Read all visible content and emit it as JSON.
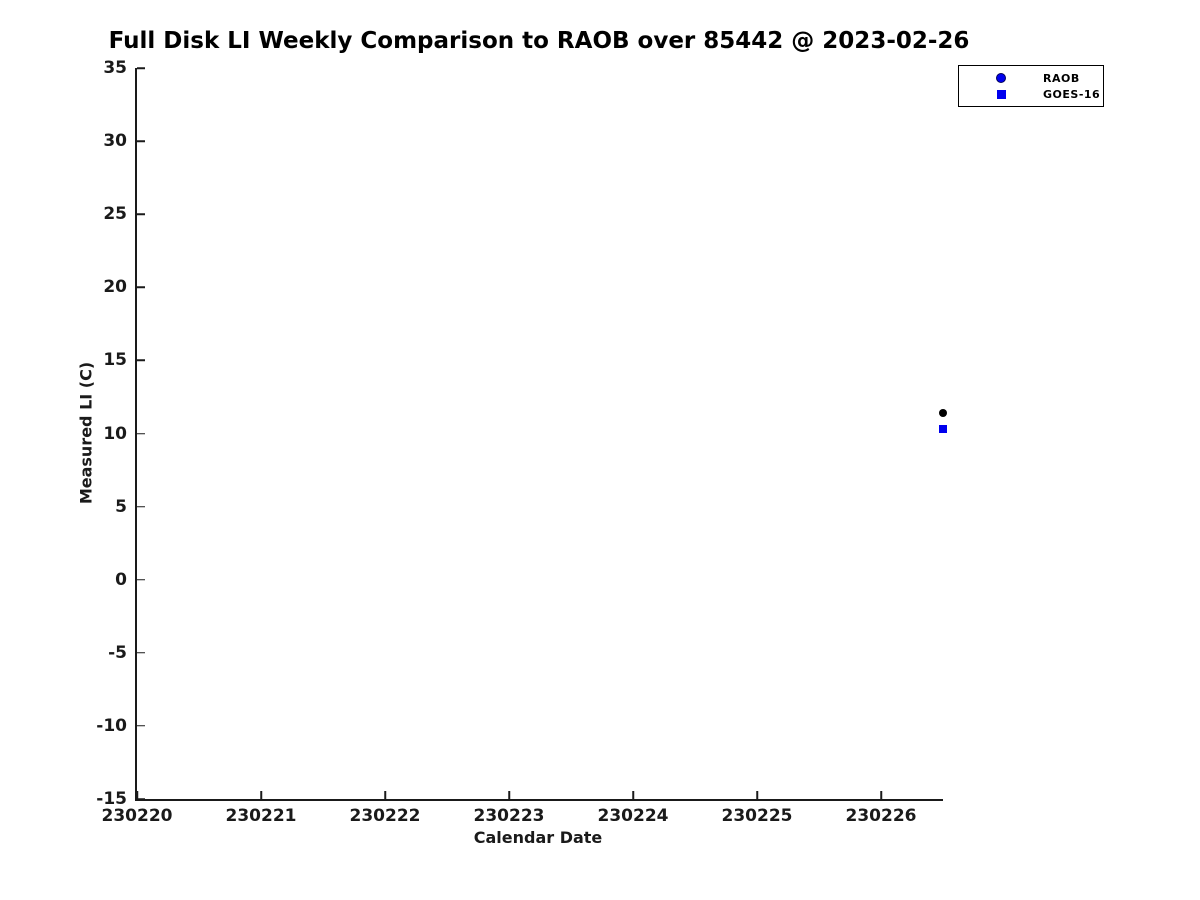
{
  "title": "Full Disk LI Weekly Comparison to RAOB over 85442 @ 2023-02-26",
  "chart_data": {
    "type": "scatter",
    "title": "Full Disk LI Weekly Comparison to RAOB over 85442 @ 2023-02-26",
    "xlabel": "Calendar Date",
    "ylabel": "Measured LI (C)",
    "xlim": [
      230220,
      230226.5
    ],
    "ylim": [
      -15,
      35
    ],
    "x_ticks": [
      230220,
      230221,
      230222,
      230223,
      230224,
      230225,
      230226
    ],
    "y_ticks": [
      35,
      30,
      25,
      20,
      15,
      10,
      5,
      0,
      -5,
      -10,
      -15
    ],
    "grid": false,
    "legend_position": "top-right",
    "series": [
      {
        "name": "RAOB",
        "marker": "circle",
        "marker_color": "#000000",
        "legend_marker_color": "#0000ee",
        "points": [
          {
            "x": 230226.5,
            "y": 11.4
          }
        ]
      },
      {
        "name": "GOES-16",
        "marker": "square",
        "marker_color": "#0000ee",
        "legend_marker_color": "#0000ee",
        "points": [
          {
            "x": 230226.5,
            "y": 10.3
          }
        ]
      }
    ]
  },
  "colors": {
    "background": "#ffffff",
    "axis": "#1a1a1a",
    "text": "#000000",
    "blue": "#0000ee"
  }
}
